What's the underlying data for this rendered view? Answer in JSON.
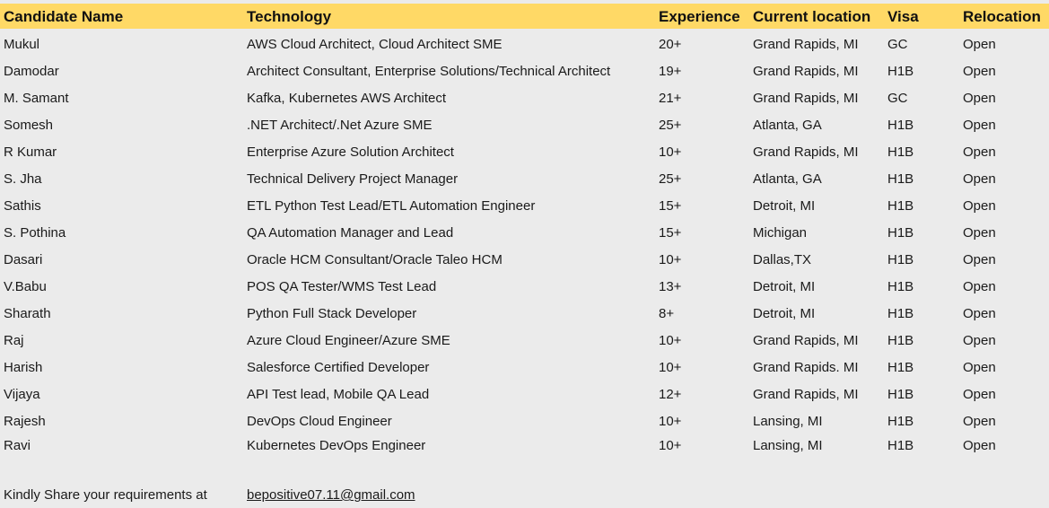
{
  "colors": {
    "header_background": "#ffd966",
    "page_background": "#ebebeb",
    "text": "#111111"
  },
  "table": {
    "headers": [
      "Candidate Name",
      "Technology",
      "Experience",
      "Current location",
      "Visa",
      "Relocation"
    ],
    "rows": [
      [
        "Mukul",
        "AWS Cloud Architect, Cloud Architect SME",
        "20+",
        "Grand Rapids, MI",
        "GC",
        "Open"
      ],
      [
        "Damodar",
        "Architect Consultant, Enterprise Solutions/Technical Architect",
        "19+",
        "Grand Rapids, MI",
        "H1B",
        "Open"
      ],
      [
        "M. Samant",
        "Kafka, Kubernetes AWS Architect",
        "21+",
        "Grand Rapids, MI",
        "GC",
        "Open"
      ],
      [
        "Somesh",
        ".NET Architect/.Net Azure SME",
        "25+",
        "Atlanta, GA",
        "H1B",
        "Open"
      ],
      [
        "R Kumar",
        "Enterprise Azure Solution Architect",
        "10+",
        "Grand Rapids, MI",
        "H1B",
        "Open"
      ],
      [
        "S. Jha",
        "Technical Delivery Project Manager",
        "25+",
        "Atlanta, GA",
        "H1B",
        "Open"
      ],
      [
        "Sathis",
        "ETL Python Test Lead/ETL Automation Engineer",
        "15+",
        "Detroit, MI",
        "H1B",
        "Open"
      ],
      [
        "S. Pothina",
        "QA Automation Manager and Lead",
        "15+",
        "Michigan",
        "H1B",
        "Open"
      ],
      [
        "Dasari",
        "Oracle HCM Consultant/Oracle Taleo HCM",
        "10+",
        "Dallas,TX",
        "H1B",
        "Open"
      ],
      [
        "V.Babu",
        "POS QA Tester/WMS Test Lead",
        "13+",
        "Detroit, MI",
        "H1B",
        "Open"
      ],
      [
        "Sharath",
        "Python Full Stack Developer",
        "8+",
        "Detroit, MI",
        "H1B",
        "Open"
      ],
      [
        "Raj",
        "Azure Cloud Engineer/Azure SME",
        "10+",
        "Grand Rapids, MI",
        "H1B",
        "Open"
      ],
      [
        "Harish",
        "Salesforce Certified Developer",
        "10+",
        "Grand Rapids. MI",
        "H1B",
        "Open"
      ],
      [
        "Vijaya",
        "API Test lead, Mobile QA Lead",
        "12+",
        "Grand Rapids, MI",
        "H1B",
        "Open"
      ],
      [
        "Rajesh",
        "DevOps Cloud Engineer",
        "10+",
        "Lansing, MI",
        "H1B",
        "Open"
      ],
      [
        "Ravi",
        "Kubernetes DevOps Engineer",
        "10+",
        "Lansing, MI",
        "H1B",
        "Open"
      ]
    ]
  },
  "footer": {
    "label": "Kindly Share your requirements at",
    "email": "bepositive07.11@gmail.com "
  }
}
